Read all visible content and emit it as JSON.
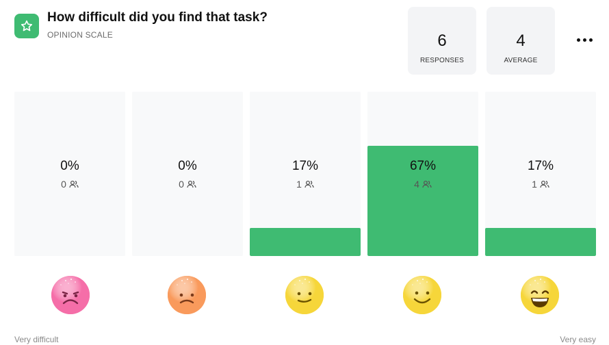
{
  "question": {
    "title": "How difficult did you find that task?",
    "type_label": "OPINION SCALE",
    "icon": "star-icon",
    "accent_color": "#3fbb72"
  },
  "stats": [
    {
      "value": "6",
      "label": "RESPONSES"
    },
    {
      "value": "4",
      "label": "AVERAGE"
    }
  ],
  "more_menu_icon": "more-dots-icon",
  "chart_data": {
    "type": "bar",
    "categories": [
      "1",
      "2",
      "3",
      "4",
      "5"
    ],
    "values": [
      0,
      0,
      17,
      67,
      17
    ],
    "counts": [
      0,
      0,
      1,
      4,
      1
    ],
    "percent_labels": [
      "0%",
      "0%",
      "17%",
      "67%",
      "17%"
    ],
    "count_labels": [
      "0",
      "0",
      "1",
      "4",
      "1"
    ],
    "ylim": [
      0,
      100
    ],
    "bar_color": "#3fbb72",
    "emojis": [
      "sad-face-icon",
      "frowning-face-icon",
      "neutral-smile-icon",
      "smiling-face-icon",
      "grinning-face-icon"
    ],
    "emoji_colors": [
      "#f56ea8",
      "#f99a5c",
      "#f6d63a",
      "#f6d63a",
      "#f6d63a"
    ],
    "scale_start_label": "Very difficult",
    "scale_end_label": "Very easy"
  }
}
